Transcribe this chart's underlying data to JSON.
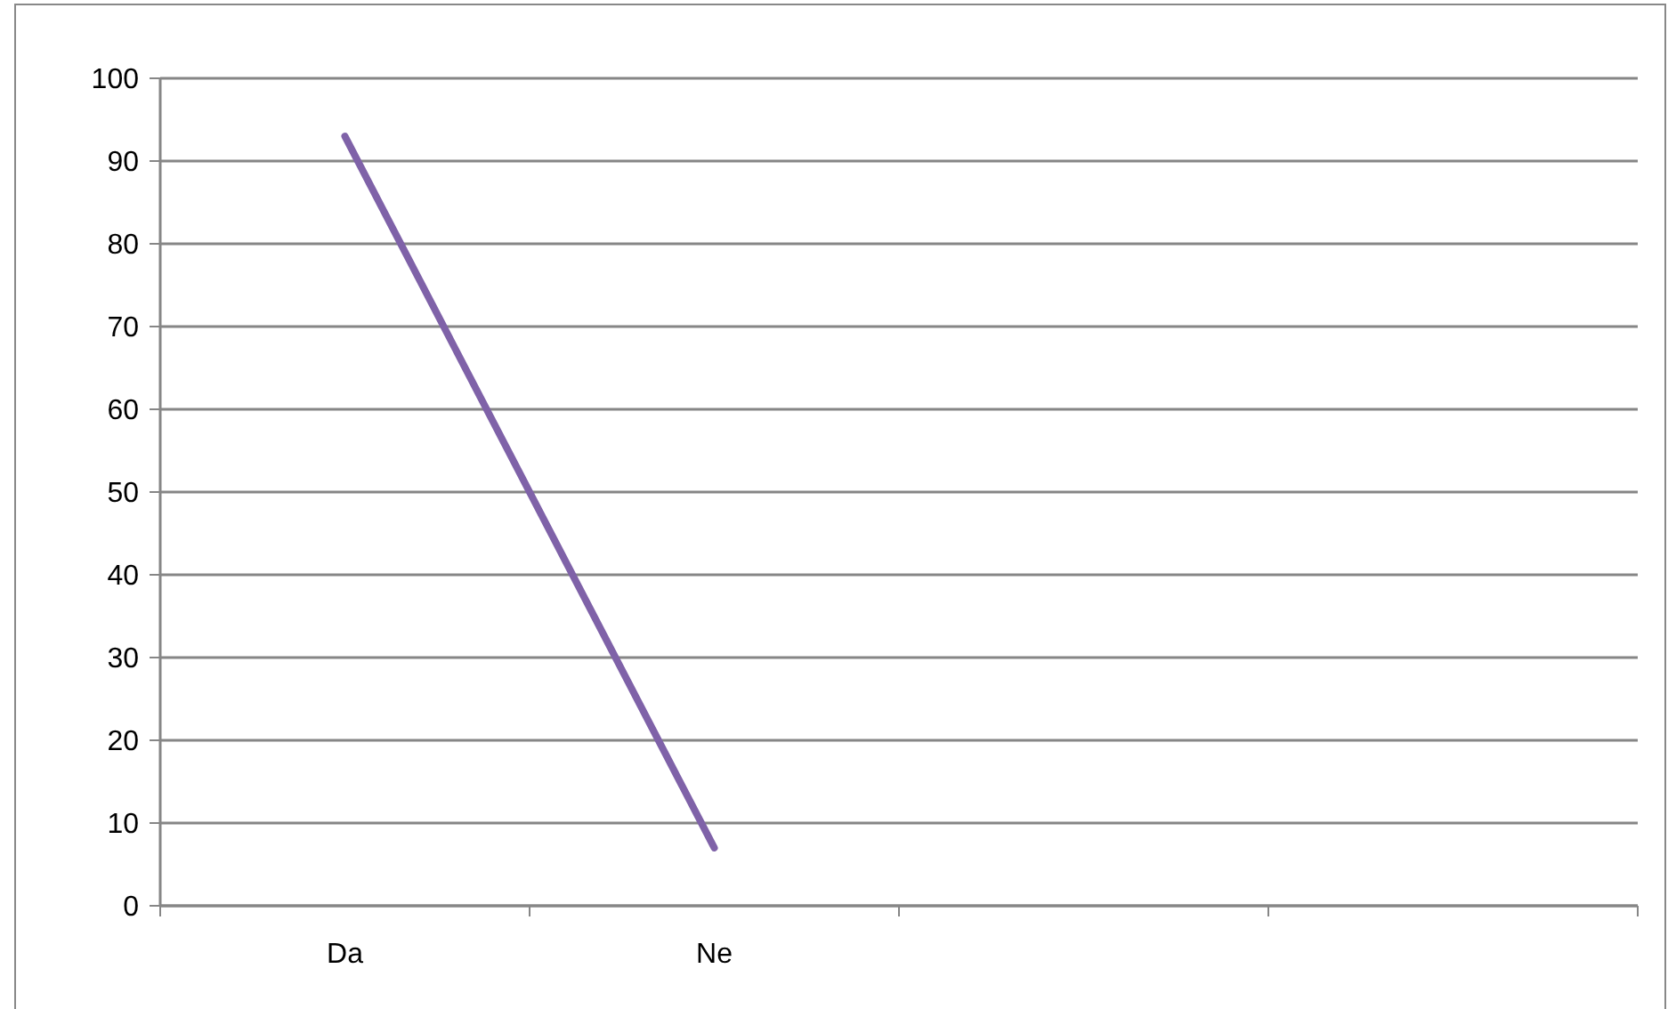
{
  "chart_data": {
    "type": "line",
    "categories": [
      "Da",
      "Ne",
      null,
      null
    ],
    "series": [
      {
        "color": "#7f62a8",
        "values": [
          93,
          7,
          null,
          null
        ]
      }
    ],
    "ylim": [
      0,
      100
    ],
    "yticks": [
      0,
      10,
      20,
      30,
      40,
      50,
      60,
      70,
      80,
      90,
      100
    ],
    "grid": "y",
    "marker": "none",
    "line_style": "solid"
  }
}
